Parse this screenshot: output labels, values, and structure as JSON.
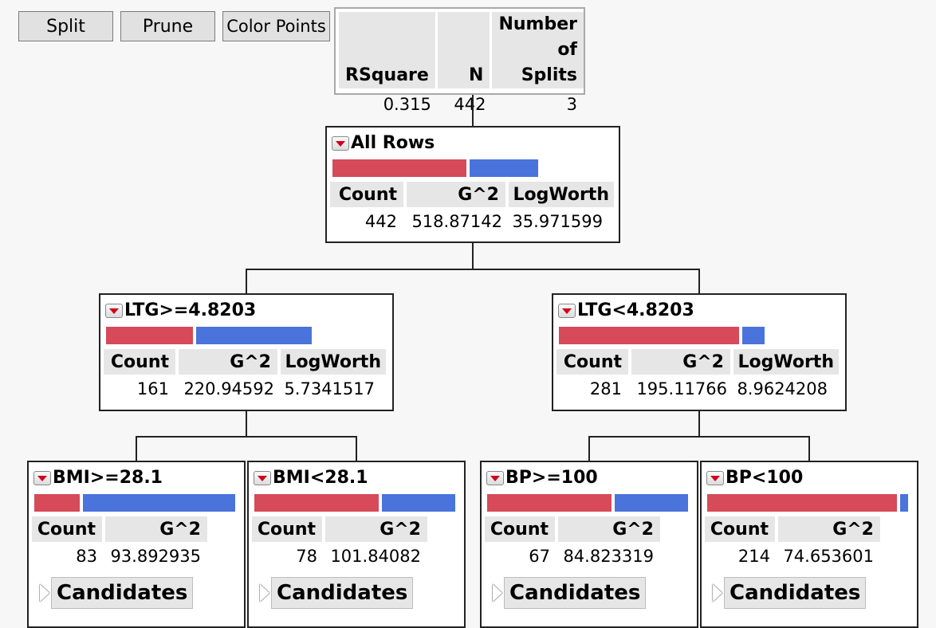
{
  "toolbar": {
    "split": "Split",
    "prune": "Prune",
    "color_points": "Color Points"
  },
  "summary": {
    "headers": {
      "rsquare": "RSquare",
      "n": "N",
      "splits_line1": "Number",
      "splits_line2": "of Splits"
    },
    "values": {
      "rsquare": "0.315",
      "n": "442",
      "splits": "3"
    }
  },
  "colors": {
    "bar_red": "#d64a5a",
    "bar_blue": "#4a73db",
    "menu_arrow": "#d0001a"
  },
  "icons": {
    "node_menu": "red-triangle-menu-icon",
    "disclosure": "disclosure-triangle-icon"
  },
  "headers": {
    "count": "Count",
    "g2": "G^2",
    "logworth": "LogWorth",
    "candidates": "Candidates"
  },
  "nodes": {
    "root": {
      "label": "All Rows",
      "count": "442",
      "g2": "518.87142",
      "logworth": "35.971599",
      "red_fraction": 0.66
    },
    "ltg_hi": {
      "label": "LTG>=4.8203",
      "count": "161",
      "g2": "220.94592",
      "logworth": "5.7341517",
      "red_fraction": 0.43
    },
    "ltg_lo": {
      "label": "LTG<4.8203",
      "count": "281",
      "g2": "195.11766",
      "logworth": "8.9624208",
      "red_fraction": 0.89
    },
    "bmi_hi": {
      "label": "BMI>=28.1",
      "count": "83",
      "g2": "93.892935",
      "red_fraction": 0.23
    },
    "bmi_lo": {
      "label": "BMI<28.1",
      "count": "78",
      "g2": "101.84082",
      "red_fraction": 0.63
    },
    "bp_hi": {
      "label": "BP>=100",
      "count": "67",
      "g2": "84.823319",
      "red_fraction": 0.63
    },
    "bp_lo": {
      "label": "BP<100",
      "count": "214",
      "g2": "74.653601",
      "red_fraction": 0.96
    }
  }
}
